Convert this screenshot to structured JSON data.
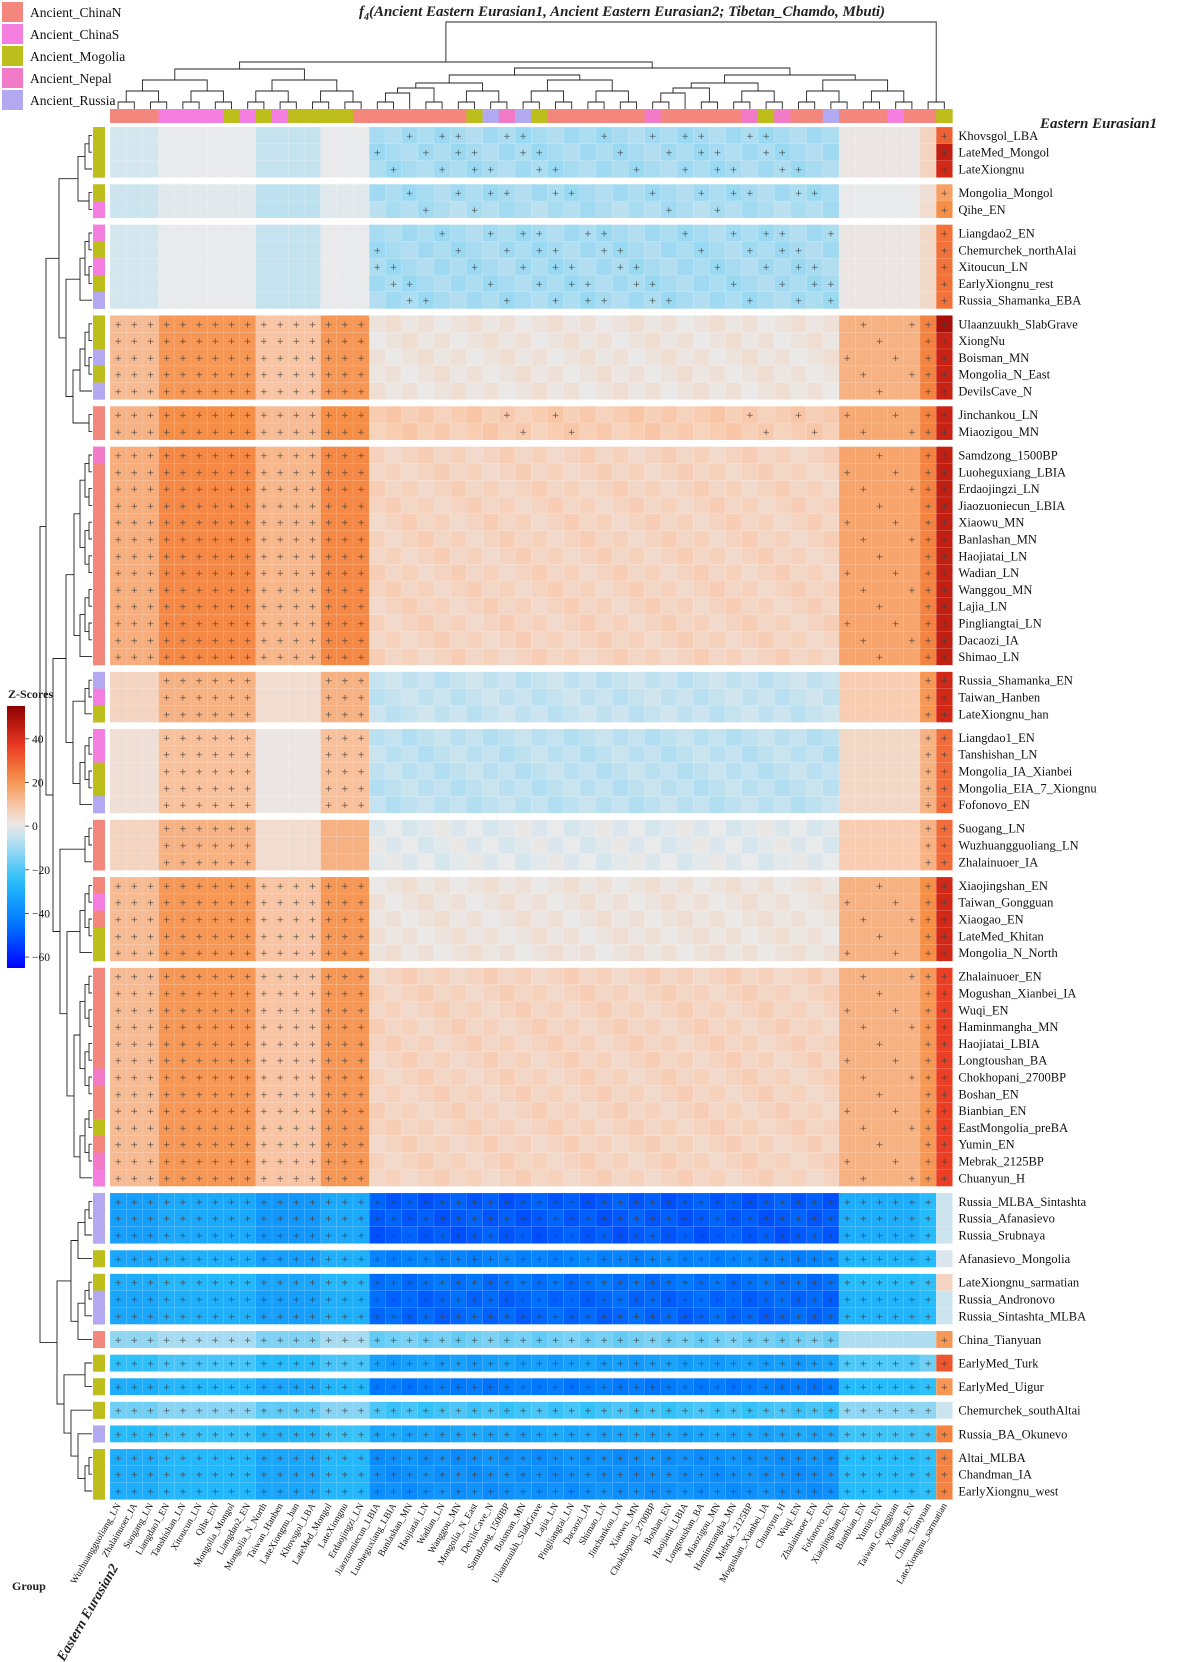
{
  "chart_data": {
    "type": "heatmap",
    "title": "f4(Ancient Eastern Eurasian1, Ancient Eastern Eurasian2; Tibetan_Chamdo, Mbuti)",
    "title_prefix": "f",
    "title_subscript": "4",
    "title_rest": "(Ancient  Eastern Eurasian1, Ancient Eastern Eurasian2; Tibetan_Chamdo, Mbuti)",
    "column_axis_title": "Eastern Eurasian1",
    "row_axis_title": "Eastern Eurasian2",
    "group_label": "Group",
    "colorbar": {
      "title": "Z-Scores",
      "ticks": [
        "40",
        "20",
        "0",
        "−20",
        "−40",
        "−60"
      ],
      "tick_values": [
        40,
        20,
        0,
        -20,
        -40,
        -60
      ],
      "range": [
        -65,
        55
      ]
    },
    "legend": [
      {
        "label": "Ancient_ChinaN",
        "color": "#F4877D"
      },
      {
        "label": "Ancient_ChinaS",
        "color": "#F57FE0"
      },
      {
        "label": "Ancient_Mogolia",
        "color": "#BDBE1C"
      },
      {
        "label": "Ancient_Nepal",
        "color": "#F27BC8"
      },
      {
        "label": "Ancient_Russia",
        "color": "#B2A9F0"
      }
    ],
    "columns": [
      "Wuzhuangguoliang_LN",
      "Zhalainuoer_IA",
      "Suogang_LN",
      "Liangdao1_EN",
      "Tanshishan_LN",
      "Xitoucun_LN",
      "Qihe_EN",
      "Mongolia_Mongol",
      "Liangdao2_EN",
      "Mongolia_N_North",
      "Taiwan_Hanben",
      "LateXiongnu_han",
      "Khovsgol_LBA",
      "LateMed_Mongol",
      "LateXiongnu",
      "Erdaojingzi_LN",
      "Jiaozuoniecun_LBIA",
      "Luoheguxiang_LBIA",
      "Banlashan_MN",
      "Haojiatai_LN",
      "Wadian_LN",
      "Wanggou_MN",
      "Mongolia_N_East",
      "DevilsCave_N",
      "Samdzong_1500BP",
      "Boisman_MN",
      "Ulaanzuukh_SlabGrave",
      "Lajia_LN",
      "Pingliangtai_LN",
      "Dacaozi_IA",
      "Shimao_LN",
      "Jinchankou_LN",
      "Xiaowu_MN",
      "Chokhopani_2700BP",
      "Boshan_EN",
      "Haojiatai_LBIA",
      "Longtoushan_BA",
      "Miaozigou_MN",
      "Haminmangha_MN",
      "Mebrak_2125BP",
      "Mogushan_Xianbei_IA",
      "Chuanyun_H",
      "Wuqi_EN",
      "Zhalainuoer_EN",
      "Fofonovo_EN",
      "Xiaojingshan_EN",
      "Bianbian_EN",
      "Yumin_EN",
      "Taiwan_Gongguan",
      "Xiaogao_EN",
      "China_Tianyuan",
      "LateXiongnu_sarmatian"
    ],
    "column_groups": [
      "ChinaN",
      "ChinaN",
      "ChinaN",
      "ChinaS",
      "ChinaS",
      "ChinaS",
      "ChinaS",
      "Mogolia",
      "ChinaS",
      "Mogolia",
      "ChinaS",
      "Mogolia",
      "Mogolia",
      "Mogolia",
      "Mogolia",
      "ChinaN",
      "ChinaN",
      "ChinaN",
      "ChinaN",
      "ChinaN",
      "ChinaN",
      "ChinaN",
      "Mogolia",
      "Russia",
      "Nepal",
      "Russia",
      "Mogolia",
      "ChinaN",
      "ChinaN",
      "ChinaN",
      "ChinaN",
      "ChinaN",
      "ChinaN",
      "Nepal",
      "ChinaN",
      "ChinaN",
      "ChinaN",
      "ChinaN",
      "ChinaN",
      "Nepal",
      "Mogolia",
      "Nepal",
      "ChinaN",
      "ChinaN",
      "Russia",
      "ChinaN",
      "ChinaN",
      "ChinaN",
      "ChinaS",
      "ChinaN",
      "ChinaN",
      "Mogolia"
    ],
    "rows": [
      {
        "name": "Khovsgol_LBA",
        "group": "Mogolia",
        "block": 0,
        "base": -3,
        "mid": -9,
        "t": 6,
        "s": 30,
        "rare": false
      },
      {
        "name": "LateMed_Mongol",
        "group": "Mogolia",
        "block": 0,
        "base": -3,
        "mid": -9,
        "t": 6,
        "s": 45,
        "rare": false
      },
      {
        "name": "LateXiongnu",
        "group": "Mogolia",
        "block": 0,
        "base": -3,
        "mid": -9,
        "t": 6,
        "s": 42,
        "rare": false
      },
      {
        "name": "Mongolia_Mongol",
        "group": "Mogolia",
        "block": 1,
        "base": -4,
        "mid": -9,
        "t": 3,
        "s": 18,
        "rare": false
      },
      {
        "name": "Qihe_EN",
        "group": "ChinaS",
        "block": 1,
        "base": -4,
        "mid": -8,
        "t": 4,
        "s": 22,
        "rare": false
      },
      {
        "name": "Liangdao2_EN",
        "group": "ChinaS",
        "block": 2,
        "base": -3,
        "mid": -9,
        "t": 5,
        "s": 27,
        "rare": false
      },
      {
        "name": "Chemurchek_northAlai",
        "group": "Mogolia",
        "block": 2,
        "base": -3,
        "mid": -9,
        "t": 5,
        "s": 27,
        "rare": false
      },
      {
        "name": "Xitoucun_LN",
        "group": "ChinaS",
        "block": 2,
        "base": -3,
        "mid": -9,
        "t": 5,
        "s": 27,
        "rare": false
      },
      {
        "name": "EarlyXiongnu_rest",
        "group": "Mogolia",
        "block": 2,
        "base": -3,
        "mid": -9,
        "t": 5,
        "s": 27,
        "rare": false
      },
      {
        "name": "Russia_Shamanka_EBA",
        "group": "Russia",
        "block": 2,
        "base": -3,
        "mid": -9,
        "t": 5,
        "s": 27,
        "rare": false
      },
      {
        "name": "Ulaanzuukh_SlabGrave",
        "group": "Mogolia",
        "block": 3,
        "base": 12,
        "mid": 2,
        "t": 24,
        "s": 50,
        "rare": false
      },
      {
        "name": "XiongNu",
        "group": "Mogolia",
        "block": 3,
        "base": 12,
        "mid": 2,
        "t": 24,
        "s": 44,
        "rare": false
      },
      {
        "name": "Boisman_MN",
        "group": "Russia",
        "block": 3,
        "base": 12,
        "mid": 2,
        "t": 24,
        "s": 44,
        "rare": false
      },
      {
        "name": "Mongolia_N_East",
        "group": "Mogolia",
        "block": 3,
        "base": 12,
        "mid": 2,
        "t": 24,
        "s": 44,
        "rare": false
      },
      {
        "name": "DevilsCave_N",
        "group": "Russia",
        "block": 3,
        "base": 12,
        "mid": 2,
        "t": 24,
        "s": 44,
        "rare": false
      },
      {
        "name": "Jinchankou_LN",
        "group": "ChinaN",
        "block": 4,
        "base": 14,
        "mid": 8,
        "t": 24,
        "s": 44,
        "rare": false
      },
      {
        "name": "Miaozigou_MN",
        "group": "ChinaN",
        "block": 4,
        "base": 14,
        "mid": 8,
        "t": 24,
        "s": 44,
        "rare": false
      },
      {
        "name": "Samdzong_1500BP",
        "group": "Nepal",
        "block": 5,
        "base": 15,
        "mid": 6,
        "t": 24,
        "s": 45,
        "rare": false
      },
      {
        "name": "Luoheguxiang_LBIA",
        "group": "ChinaN",
        "block": 5,
        "base": 15,
        "mid": 6,
        "t": 24,
        "s": 45,
        "rare": false
      },
      {
        "name": "Erdaojingzi_LN",
        "group": "ChinaN",
        "block": 5,
        "base": 15,
        "mid": 6,
        "t": 24,
        "s": 45,
        "rare": false
      },
      {
        "name": "Jiaozuoniecun_LBIA",
        "group": "ChinaN",
        "block": 5,
        "base": 15,
        "mid": 6,
        "t": 24,
        "s": 45,
        "rare": false
      },
      {
        "name": "Xiaowu_MN",
        "group": "ChinaN",
        "block": 5,
        "base": 15,
        "mid": 6,
        "t": 24,
        "s": 45,
        "rare": false
      },
      {
        "name": "Banlashan_MN",
        "group": "ChinaN",
        "block": 5,
        "base": 15,
        "mid": 6,
        "t": 24,
        "s": 45,
        "rare": false
      },
      {
        "name": "Haojiatai_LN",
        "group": "ChinaN",
        "block": 5,
        "base": 15,
        "mid": 6,
        "t": 24,
        "s": 45,
        "rare": false
      },
      {
        "name": "Wadian_LN",
        "group": "ChinaN",
        "block": 5,
        "base": 15,
        "mid": 6,
        "t": 24,
        "s": 45,
        "rare": false
      },
      {
        "name": "Wanggou_MN",
        "group": "ChinaN",
        "block": 5,
        "base": 15,
        "mid": 6,
        "t": 24,
        "s": 45,
        "rare": false
      },
      {
        "name": "Lajia_LN",
        "group": "ChinaN",
        "block": 5,
        "base": 15,
        "mid": 6,
        "t": 24,
        "s": 45,
        "rare": false
      },
      {
        "name": "Pingliangtai_LN",
        "group": "ChinaN",
        "block": 5,
        "base": 15,
        "mid": 6,
        "t": 24,
        "s": 45,
        "rare": false
      },
      {
        "name": "Dacaozi_IA",
        "group": "ChinaN",
        "block": 5,
        "base": 15,
        "mid": 6,
        "t": 24,
        "s": 45,
        "rare": false
      },
      {
        "name": "Shimao_LN",
        "group": "ChinaN",
        "block": 5,
        "base": 15,
        "mid": 6,
        "t": 24,
        "s": 45,
        "rare": false
      },
      {
        "name": "Russia_Shamanka_EN",
        "group": "Russia",
        "block": 6,
        "base": 6,
        "mid": -5,
        "t": 20,
        "s": 42,
        "rare": false
      },
      {
        "name": "Taiwan_Hanben",
        "group": "ChinaS",
        "block": 6,
        "base": 6,
        "mid": -5,
        "t": 20,
        "s": 42,
        "rare": false
      },
      {
        "name": "LateXiongnu_han",
        "group": "Mogolia",
        "block": 6,
        "base": 6,
        "mid": -5,
        "t": 20,
        "s": 42,
        "rare": false
      },
      {
        "name": "Liangdao1_EN",
        "group": "ChinaS",
        "block": 7,
        "base": 3,
        "mid": -6,
        "t": 14,
        "s": 28,
        "rare": false
      },
      {
        "name": "Tanshishan_LN",
        "group": "ChinaS",
        "block": 7,
        "base": 3,
        "mid": -6,
        "t": 14,
        "s": 28,
        "rare": false
      },
      {
        "name": "Mongolia_IA_Xianbei",
        "group": "Mogolia",
        "block": 7,
        "base": 3,
        "mid": -6,
        "t": 14,
        "s": 28,
        "rare": false
      },
      {
        "name": "Mongolia_EIA_7_Xiongnu",
        "group": "Mogolia",
        "block": 7,
        "base": 3,
        "mid": -6,
        "t": 14,
        "s": 28,
        "rare": false
      },
      {
        "name": "Fofonovo_EN",
        "group": "Russia",
        "block": 7,
        "base": 3,
        "mid": -6,
        "t": 14,
        "s": 28,
        "rare": false
      },
      {
        "name": "Suogang_LN",
        "group": "ChinaN",
        "block": 8,
        "base": 6,
        "mid": -1,
        "t": 14,
        "s": 28,
        "rare": true
      },
      {
        "name": "Wuzhuangguoliang_LN",
        "group": "ChinaN",
        "block": 8,
        "base": 6,
        "mid": -1,
        "t": 14,
        "s": 28,
        "rare": true
      },
      {
        "name": "Zhalainuoer_IA",
        "group": "ChinaN",
        "block": 8,
        "base": 6,
        "mid": -1,
        "t": 14,
        "s": 28,
        "rare": true
      },
      {
        "name": "Xiaojingshan_EN",
        "group": "ChinaN",
        "block": 9,
        "base": 12,
        "mid": 2,
        "t": 22,
        "s": 42,
        "rare": false
      },
      {
        "name": "Taiwan_Gongguan",
        "group": "ChinaS",
        "block": 9,
        "base": 12,
        "mid": 2,
        "t": 22,
        "s": 42,
        "rare": false
      },
      {
        "name": "Xiaogao_EN",
        "group": "ChinaN",
        "block": 9,
        "base": 12,
        "mid": 2,
        "t": 22,
        "s": 42,
        "rare": false
      },
      {
        "name": "LateMed_Khitan",
        "group": "Mogolia",
        "block": 9,
        "base": 12,
        "mid": 2,
        "t": 22,
        "s": 42,
        "rare": false
      },
      {
        "name": "Mongolia_N_North",
        "group": "Mogolia",
        "block": 9,
        "base": 12,
        "mid": 2,
        "t": 22,
        "s": 42,
        "rare": false
      },
      {
        "name": "Zhalainuoer_EN",
        "group": "ChinaN",
        "block": 10,
        "base": 12,
        "mid": 6,
        "t": 20,
        "s": 36,
        "rare": false
      },
      {
        "name": "Mogushan_Xianbei_IA",
        "group": "ChinaN",
        "block": 10,
        "base": 12,
        "mid": 6,
        "t": 20,
        "s": 36,
        "rare": false
      },
      {
        "name": "Wuqi_EN",
        "group": "ChinaN",
        "block": 10,
        "base": 12,
        "mid": 6,
        "t": 20,
        "s": 36,
        "rare": false
      },
      {
        "name": "Haminmangha_MN",
        "group": "ChinaN",
        "block": 10,
        "base": 12,
        "mid": 6,
        "t": 20,
        "s": 36,
        "rare": false
      },
      {
        "name": "Haojiatai_LBIA",
        "group": "ChinaN",
        "block": 10,
        "base": 12,
        "mid": 6,
        "t": 20,
        "s": 36,
        "rare": false
      },
      {
        "name": "Longtoushan_BA",
        "group": "ChinaN",
        "block": 10,
        "base": 12,
        "mid": 6,
        "t": 20,
        "s": 36,
        "rare": false
      },
      {
        "name": "Chokhopani_2700BP",
        "group": "Nepal",
        "block": 10,
        "base": 12,
        "mid": 6,
        "t": 20,
        "s": 36,
        "rare": false
      },
      {
        "name": "Boshan_EN",
        "group": "ChinaN",
        "block": 10,
        "base": 12,
        "mid": 6,
        "t": 20,
        "s": 36,
        "rare": false
      },
      {
        "name": "Bianbian_EN",
        "group": "ChinaN",
        "block": 10,
        "base": 12,
        "mid": 6,
        "t": 20,
        "s": 36,
        "rare": false
      },
      {
        "name": "EastMongolia_preBA",
        "group": "Mogolia",
        "block": 10,
        "base": 12,
        "mid": 6,
        "t": 20,
        "s": 36,
        "rare": false
      },
      {
        "name": "Yumin_EN",
        "group": "ChinaN",
        "block": 10,
        "base": 12,
        "mid": 6,
        "t": 20,
        "s": 36,
        "rare": false
      },
      {
        "name": "Mebrak_2125BP",
        "group": "Nepal",
        "block": 10,
        "base": 12,
        "mid": 6,
        "t": 20,
        "s": 36,
        "rare": false
      },
      {
        "name": "Chuanyun_H",
        "group": "ChinaS",
        "block": 10,
        "base": 12,
        "mid": 6,
        "t": 20,
        "s": 36,
        "rare": false
      },
      {
        "name": "Russia_MLBA_Sintashta",
        "group": "Russia",
        "block": 11,
        "base": -34,
        "mid": -50,
        "t": -26,
        "s": -4,
        "rare": false
      },
      {
        "name": "Russia_Afanasievo",
        "group": "Russia",
        "block": 11,
        "base": -34,
        "mid": -50,
        "t": -26,
        "s": -4,
        "rare": false
      },
      {
        "name": "Russia_Srubnaya",
        "group": "Russia",
        "block": 11,
        "base": -34,
        "mid": -50,
        "t": -26,
        "s": -4,
        "rare": false
      },
      {
        "name": "Afanasievo_Mongolia",
        "group": "Mogolia",
        "block": 12,
        "base": -32,
        "mid": -42,
        "t": -26,
        "s": -2,
        "rare": false
      },
      {
        "name": "LateXiongnu_sarmatian",
        "group": "Mogolia",
        "block": 13,
        "base": -30,
        "mid": -46,
        "t": -24,
        "s": 6,
        "rare": false
      },
      {
        "name": "Russia_Andronovo",
        "group": "Russia",
        "block": 13,
        "base": -32,
        "mid": -48,
        "t": -26,
        "s": -4,
        "rare": false
      },
      {
        "name": "Russia_Sintashta_MLBA",
        "group": "Russia",
        "block": 13,
        "base": -32,
        "mid": -48,
        "t": -26,
        "s": -4,
        "rare": false
      },
      {
        "name": "China_Tianyuan",
        "group": "ChinaN",
        "block": 14,
        "base": -12,
        "mid": -16,
        "t": -8,
        "s": 20,
        "rare": false
      },
      {
        "name": "EarlyMed_Turk",
        "group": "Mogolia",
        "block": 15,
        "base": -24,
        "mid": -34,
        "t": -16,
        "s": 32,
        "rare": false
      },
      {
        "name": "EarlyMed_Uigur",
        "group": "Mogolia",
        "block": 16,
        "base": -30,
        "mid": -44,
        "t": -24,
        "s": 20,
        "rare": false
      },
      {
        "name": "Chemurchek_southAltai",
        "group": "Mogolia",
        "block": 17,
        "base": -16,
        "mid": -22,
        "t": -12,
        "s": -4,
        "rare": false
      },
      {
        "name": "Russia_BA_Okunevo",
        "group": "Russia",
        "block": 18,
        "base": -26,
        "mid": -32,
        "t": -22,
        "s": 24,
        "rare": false
      },
      {
        "name": "Altai_MLBA",
        "group": "Mogolia",
        "block": 19,
        "base": -30,
        "mid": -38,
        "t": -24,
        "s": 24,
        "rare": false
      },
      {
        "name": "Chandman_IA",
        "group": "Mogolia",
        "block": 19,
        "base": -30,
        "mid": -38,
        "t": -24,
        "s": 24,
        "rare": false
      },
      {
        "name": "EarlyXiongnu_west",
        "group": "Mogolia",
        "block": 19,
        "base": -30,
        "mid": -38,
        "t": -24,
        "s": 24,
        "rare": false
      }
    ]
  }
}
